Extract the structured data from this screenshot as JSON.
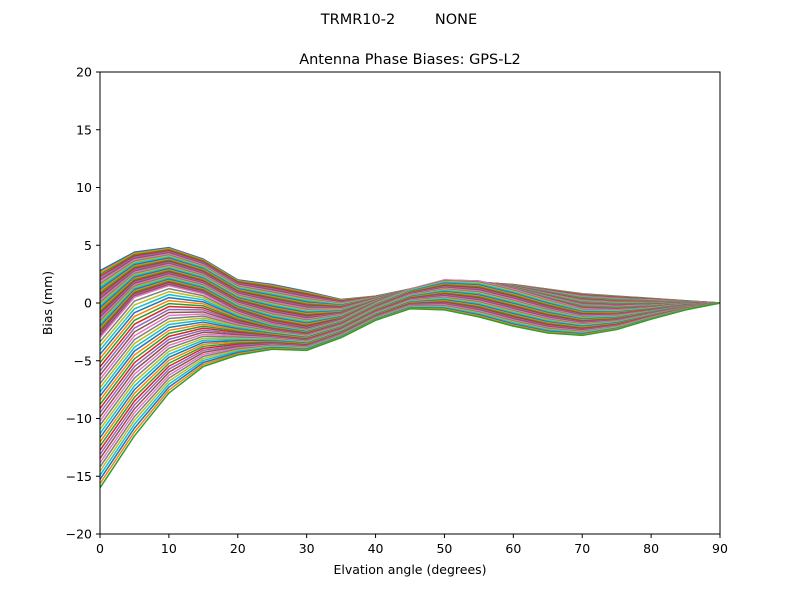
{
  "figure": {
    "suptitle_left": "TRMR10-2",
    "suptitle_right": "NONE"
  },
  "chart_data": {
    "type": "line",
    "title": "Antenna Phase Biases: GPS-L2",
    "xlabel": "Elvation angle (degrees)",
    "ylabel": "Bias (mm)",
    "xlim": [
      0,
      90
    ],
    "ylim": [
      -20,
      20
    ],
    "xticks": [
      0,
      10,
      20,
      30,
      40,
      50,
      60,
      70,
      80,
      90
    ],
    "yticks": [
      -20,
      -15,
      -10,
      -5,
      0,
      5,
      10,
      15,
      20
    ],
    "grid": false,
    "legend": "none",
    "x": [
      0,
      5,
      10,
      15,
      20,
      25,
      30,
      35,
      40,
      45,
      50,
      55,
      60,
      65,
      70,
      75,
      80,
      85,
      90
    ],
    "series_count": 73,
    "series_colors": [
      "#1f77b4",
      "#ff7f0e",
      "#2ca02c",
      "#d62728",
      "#9467bd",
      "#8c564b",
      "#e377c2",
      "#7f7f7f",
      "#bcbd22",
      "#17becf"
    ],
    "series_family": {
      "description_of_variation": "each curve is a member of a family whose values at x=0, 5, 10, 15, 20, 25, 30, 35, 40, 45, 50, 55, 60, 65, 70, 75, 80, 85, 90 are given below for three representative members; intermediate curves blend between them",
      "upper_envelope": [
        2.8,
        4.4,
        4.8,
        3.8,
        2.0,
        1.6,
        1.0,
        0.3,
        0.6,
        1.2,
        1.6,
        1.8,
        1.6,
        1.2,
        0.8,
        0.6,
        0.4,
        0.2,
        0.0
      ],
      "middle_curve": [
        -3.0,
        0.5,
        1.5,
        0.8,
        -0.8,
        -1.8,
        -2.3,
        -1.5,
        0.0,
        1.2,
        2.0,
        1.9,
        1.2,
        0.3,
        -0.5,
        -0.6,
        -0.4,
        -0.1,
        0.0
      ],
      "lower_envelope": [
        -16.0,
        -11.5,
        -7.8,
        -5.5,
        -4.5,
        -4.0,
        -4.1,
        -3.0,
        -1.5,
        -0.5,
        -0.6,
        -1.2,
        -2.0,
        -2.6,
        -2.8,
        -2.3,
        -1.4,
        -0.6,
        0.0
      ]
    }
  }
}
